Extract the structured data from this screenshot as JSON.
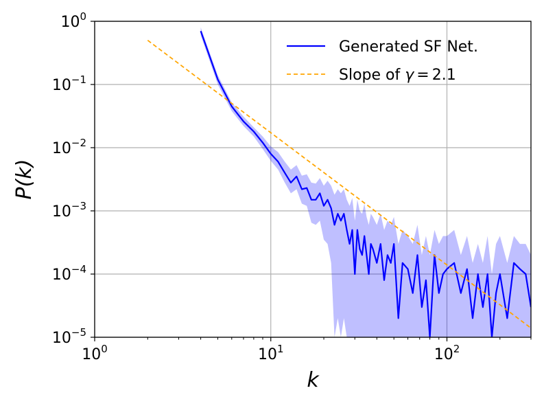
{
  "chart_data": {
    "type": "line",
    "xscale": "log",
    "yscale": "log",
    "xlabel": "k",
    "ylabel": "P(k)",
    "xlim": [
      1,
      300
    ],
    "ylim": [
      1e-05,
      1
    ],
    "grid": true,
    "legend_position": "top-right",
    "x_ticks": [
      {
        "value": 1,
        "base": "10",
        "exp": "0"
      },
      {
        "value": 10,
        "base": "10",
        "exp": "1"
      },
      {
        "value": 100,
        "base": "10",
        "exp": "2"
      }
    ],
    "y_ticks": [
      {
        "value": 1,
        "base": "10",
        "exp": "0"
      },
      {
        "value": 0.1,
        "base": "10",
        "exp": "−1"
      },
      {
        "value": 0.01,
        "base": "10",
        "exp": "−2"
      },
      {
        "value": 0.001,
        "base": "10",
        "exp": "−3"
      },
      {
        "value": 0.0001,
        "base": "10",
        "exp": "−4"
      },
      {
        "value": 1e-05,
        "base": "10",
        "exp": "−5"
      }
    ],
    "series": [
      {
        "name": "Generated SF Net.",
        "style": "solid",
        "color": "#0000ff",
        "band_color": "#0000ff",
        "x": [
          4,
          5,
          6,
          7,
          8,
          9,
          10,
          11,
          12,
          13,
          14,
          15,
          16,
          17,
          18,
          19,
          20,
          21,
          22,
          23,
          24,
          25,
          26,
          27,
          28,
          29,
          30,
          31,
          32,
          33,
          34,
          35,
          36,
          37,
          38,
          40,
          42,
          44,
          46,
          48,
          50,
          53,
          56,
          60,
          64,
          68,
          72,
          76,
          80,
          85,
          90,
          95,
          100,
          110,
          120,
          130,
          140,
          150,
          160,
          170,
          180,
          190,
          200,
          220,
          240,
          260,
          280,
          300
        ],
        "y": [
          0.7,
          0.12,
          0.045,
          0.026,
          0.018,
          0.012,
          0.008,
          0.006,
          0.004,
          0.0028,
          0.0035,
          0.0022,
          0.0023,
          0.0015,
          0.0015,
          0.0019,
          0.0012,
          0.0015,
          0.0011,
          0.0006,
          0.0009,
          0.0007,
          0.0009,
          0.0005,
          0.0003,
          0.0005,
          0.0001,
          0.0005,
          0.00025,
          0.0002,
          0.0004,
          0.0002,
          0.0001,
          0.0003,
          0.00025,
          0.00015,
          0.0003,
          8e-05,
          0.0002,
          0.00015,
          0.0003,
          2e-05,
          0.00015,
          0.00012,
          5e-05,
          0.0002,
          3e-05,
          8e-05,
          1e-05,
          0.0002,
          5e-05,
          0.0001,
          0.00012,
          0.00015,
          5e-05,
          0.00012,
          2e-05,
          0.0001,
          3e-05,
          0.0001,
          1e-05,
          5e-05,
          0.0001,
          2e-05,
          0.00015,
          0.00012,
          0.0001,
          3e-05
        ],
        "band_lower": [
          0.6,
          0.1,
          0.038,
          0.022,
          0.015,
          0.0095,
          0.0062,
          0.0045,
          0.0028,
          0.0019,
          0.0022,
          0.0013,
          0.0012,
          0.00065,
          0.0006,
          0.0007,
          0.00035,
          0.0003,
          0.00015,
          1e-05,
          2e-05,
          1e-05,
          2e-05,
          1e-05,
          1e-05,
          1e-05,
          1e-05,
          1e-05,
          1e-05,
          1e-05,
          1e-05,
          1e-05,
          1e-05,
          1e-05,
          1e-05,
          1e-05,
          1e-05,
          1e-05,
          1e-05,
          1e-05,
          1e-05,
          1e-05,
          1e-05,
          1e-05,
          1e-05,
          1e-05,
          1e-05,
          1e-05,
          1e-05,
          1e-05,
          1e-05,
          1e-05,
          1e-05,
          1e-05,
          1e-05,
          1e-05,
          1e-05,
          1e-05,
          1e-05,
          1e-05,
          1e-05,
          1e-05,
          1e-05,
          1e-05,
          1e-05,
          1e-05,
          1e-05,
          1e-05
        ],
        "band_upper": [
          0.8,
          0.14,
          0.052,
          0.031,
          0.021,
          0.015,
          0.0105,
          0.0085,
          0.006,
          0.0045,
          0.0053,
          0.0036,
          0.0038,
          0.0028,
          0.0027,
          0.0033,
          0.0025,
          0.003,
          0.0025,
          0.0018,
          0.0022,
          0.0019,
          0.0022,
          0.0015,
          0.0012,
          0.0016,
          0.0007,
          0.0015,
          0.001,
          0.0009,
          0.0013,
          0.0008,
          0.0006,
          0.0009,
          0.0008,
          0.0006,
          0.0009,
          0.0005,
          0.0007,
          0.0006,
          0.0008,
          0.0003,
          0.0005,
          0.0004,
          0.0003,
          0.0006,
          0.0002,
          0.0004,
          0.0002,
          0.0005,
          0.0003,
          0.0004,
          0.0004,
          0.0005,
          0.0002,
          0.0004,
          0.00015,
          0.0003,
          0.00015,
          0.0004,
          0.0001,
          0.0003,
          0.0004,
          0.00015,
          0.0004,
          0.0003,
          0.0003,
          0.0002
        ]
      },
      {
        "name": "Slope of",
        "gamma_symbol": "γ",
        "equals": "=",
        "gamma_value": "2.1",
        "style": "dashed",
        "color": "#ffa500",
        "x": [
          2,
          300
        ],
        "y": [
          0.5,
          1.4e-05
        ]
      }
    ]
  }
}
